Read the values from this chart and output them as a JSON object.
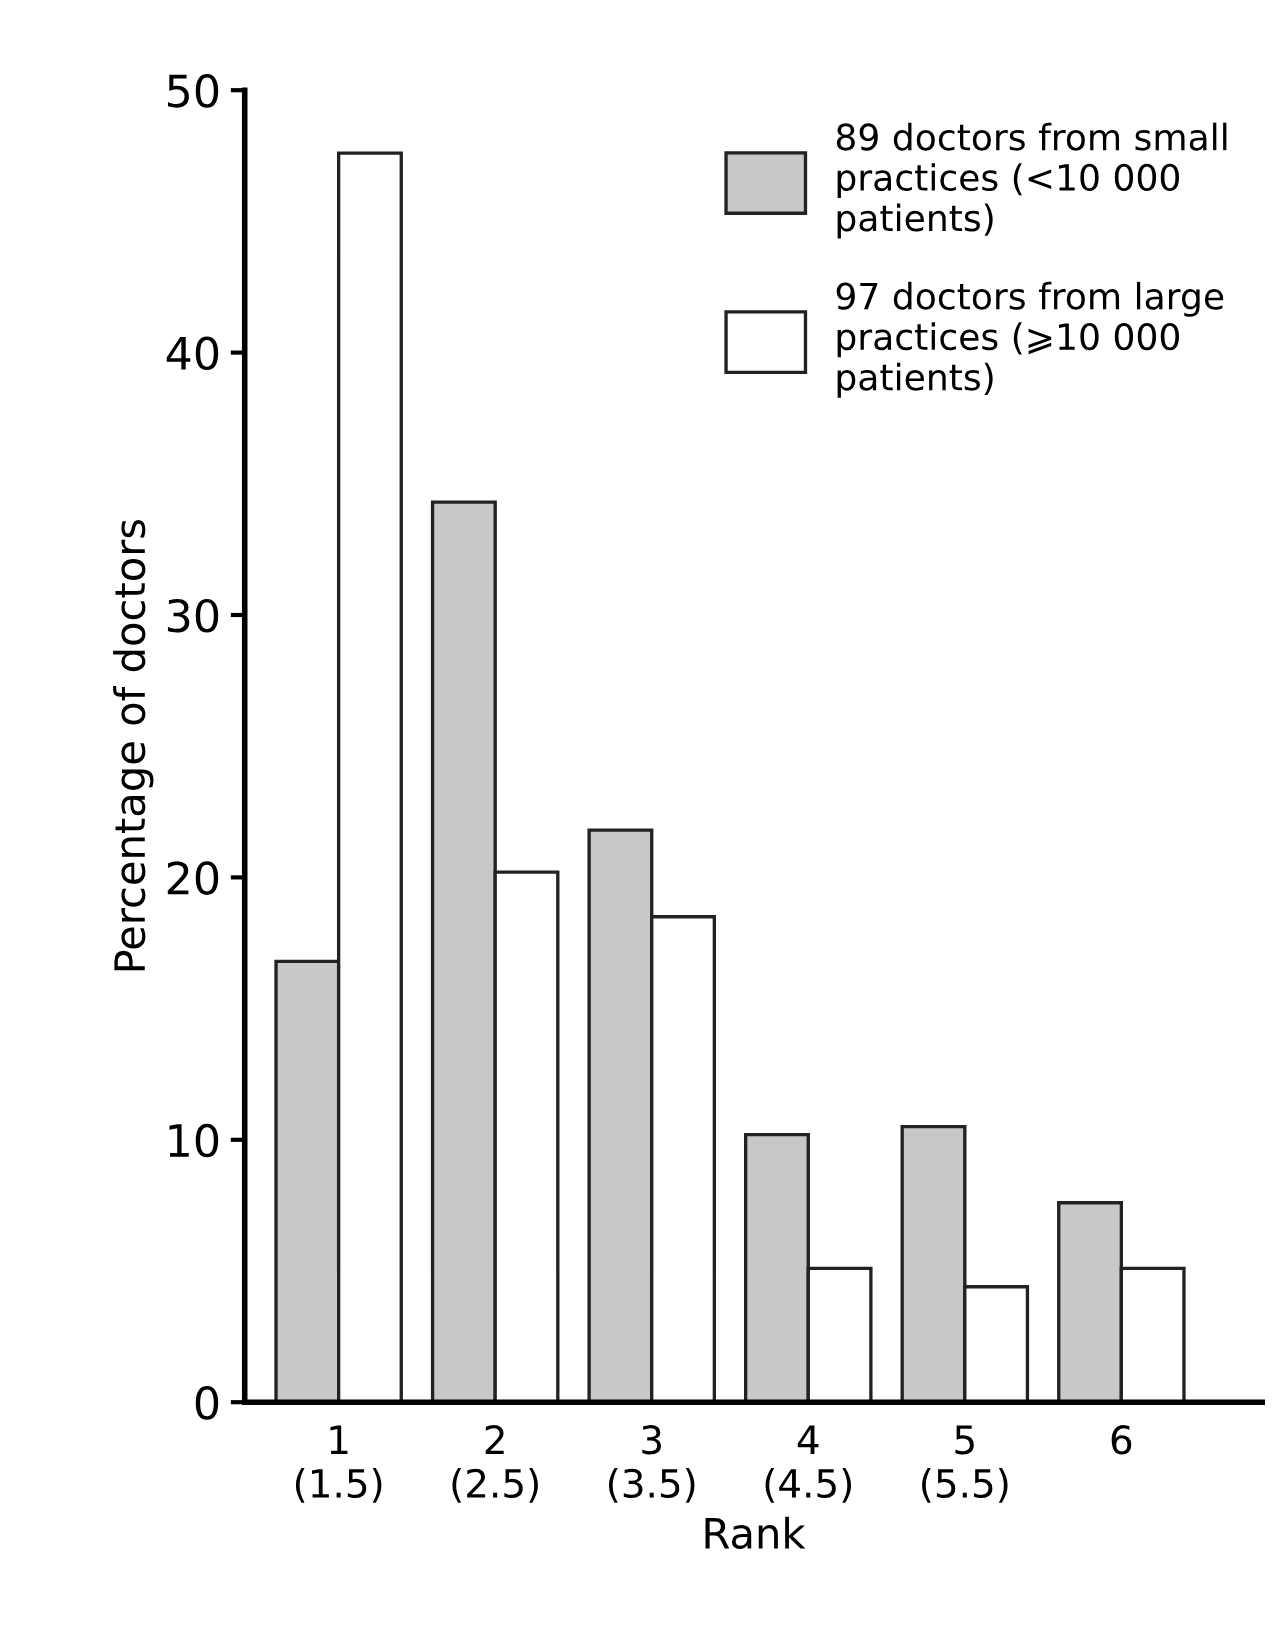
{
  "chart_data": {
    "type": "bar",
    "xlabel": "Rank",
    "ylabel": "Percentage of doctors",
    "categories": [
      "1\n(1.5)",
      "2\n(2.5)",
      "3\n(3.5)",
      "4\n(4.5)",
      "5\n(5.5)",
      "6"
    ],
    "series": [
      {
        "name": "89 doctors from small\npractices (<10 000\npatients)",
        "color": "#c8c8c8",
        "values": [
          16.8,
          34.3,
          21.8,
          10.2,
          10.5,
          7.6
        ]
      },
      {
        "name": "97 doctors from large\npractices (⩾10 000\npatients)",
        "color": "#ffffff",
        "values": [
          47.6,
          20.2,
          18.5,
          5.1,
          4.4,
          5.1
        ]
      }
    ],
    "ylim": [
      0,
      50
    ],
    "yticks": [
      0,
      10,
      20,
      30,
      40,
      50
    ],
    "grid": false,
    "legend": "top right"
  }
}
